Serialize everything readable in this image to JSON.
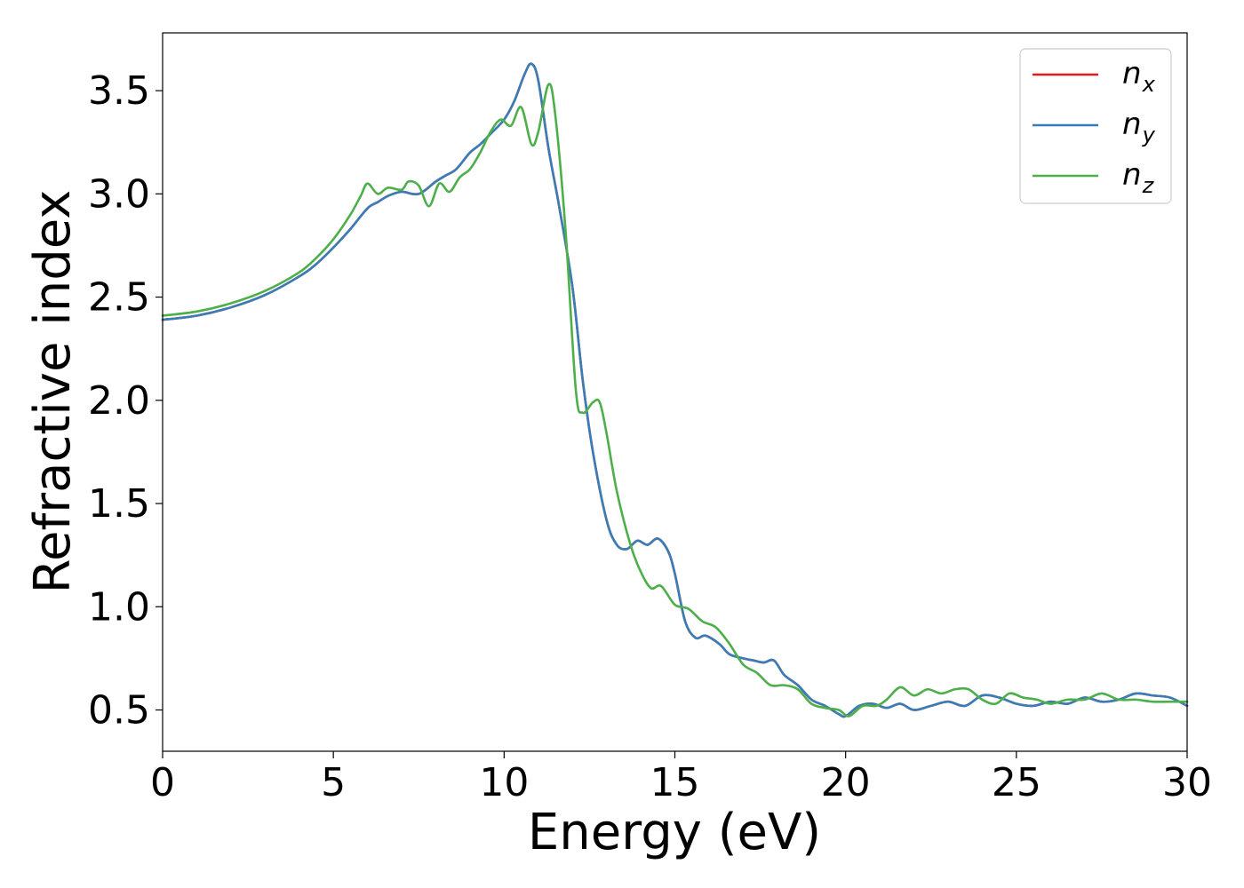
{
  "chart_data": {
    "type": "line",
    "xlabel": "Energy (eV)",
    "ylabel": "Refractive index",
    "xlim": [
      0,
      30
    ],
    "ylim": [
      0.3,
      3.78
    ],
    "xticks": [
      0,
      5,
      10,
      15,
      20,
      25,
      30
    ],
    "xtick_labels": [
      "0",
      "5",
      "10",
      "15",
      "20",
      "25",
      "30"
    ],
    "yticks": [
      0.5,
      1.0,
      1.5,
      2.0,
      2.5,
      3.0,
      3.5
    ],
    "ytick_labels": [
      "0.5",
      "1.0",
      "1.5",
      "2.0",
      "2.5",
      "3.0",
      "3.5"
    ],
    "grid": false,
    "legend_position": "top-right",
    "series": [
      {
        "name": "n_x",
        "legend_base": "n",
        "legend_sub": "x",
        "color": "#e41a1c",
        "x": [
          0,
          1,
          2,
          3,
          4,
          4.5,
          5,
          5.5,
          6,
          6.3,
          6.6,
          7,
          7.5,
          8,
          8.3,
          8.6,
          9,
          9.3,
          9.6,
          10,
          10.3,
          10.6,
          10.8,
          11,
          11.3,
          11.6,
          12,
          12.3,
          12.6,
          13,
          13.3,
          13.6,
          13.9,
          14.2,
          14.5,
          14.8,
          15,
          15.3,
          15.6,
          15.9,
          16.3,
          16.6,
          17,
          17.3,
          17.6,
          17.9,
          18.2,
          18.6,
          19,
          19.4,
          19.8,
          20,
          20.4,
          20.8,
          21.2,
          21.6,
          22,
          22.5,
          23,
          23.5,
          24,
          24.5,
          25,
          25.5,
          26,
          26.5,
          27,
          27.5,
          28,
          28.5,
          29,
          29.5,
          30
        ],
        "y": [
          2.39,
          2.41,
          2.45,
          2.51,
          2.6,
          2.66,
          2.74,
          2.83,
          2.93,
          2.96,
          2.99,
          3.01,
          3.0,
          3.06,
          3.09,
          3.12,
          3.2,
          3.24,
          3.29,
          3.36,
          3.45,
          3.58,
          3.63,
          3.55,
          3.22,
          2.95,
          2.55,
          2.1,
          1.75,
          1.42,
          1.3,
          1.28,
          1.32,
          1.3,
          1.33,
          1.27,
          1.16,
          0.93,
          0.85,
          0.86,
          0.82,
          0.77,
          0.75,
          0.74,
          0.73,
          0.74,
          0.67,
          0.62,
          0.55,
          0.52,
          0.48,
          0.47,
          0.52,
          0.53,
          0.51,
          0.53,
          0.5,
          0.52,
          0.54,
          0.52,
          0.57,
          0.56,
          0.53,
          0.52,
          0.54,
          0.53,
          0.56,
          0.54,
          0.55,
          0.58,
          0.57,
          0.56,
          0.52
        ]
      },
      {
        "name": "n_y",
        "legend_base": "n",
        "legend_sub": "y",
        "color": "#377eb8",
        "x": [
          0,
          1,
          2,
          3,
          4,
          4.5,
          5,
          5.5,
          6,
          6.3,
          6.6,
          7,
          7.5,
          8,
          8.3,
          8.6,
          9,
          9.3,
          9.6,
          10,
          10.3,
          10.6,
          10.8,
          11,
          11.3,
          11.6,
          12,
          12.3,
          12.6,
          13,
          13.3,
          13.6,
          13.9,
          14.2,
          14.5,
          14.8,
          15,
          15.3,
          15.6,
          15.9,
          16.3,
          16.6,
          17,
          17.3,
          17.6,
          17.9,
          18.2,
          18.6,
          19,
          19.4,
          19.8,
          20,
          20.4,
          20.8,
          21.2,
          21.6,
          22,
          22.5,
          23,
          23.5,
          24,
          24.5,
          25,
          25.5,
          26,
          26.5,
          27,
          27.5,
          28,
          28.5,
          29,
          29.5,
          30
        ],
        "y": [
          2.39,
          2.41,
          2.45,
          2.51,
          2.6,
          2.66,
          2.74,
          2.83,
          2.93,
          2.96,
          2.99,
          3.01,
          3.0,
          3.06,
          3.09,
          3.12,
          3.2,
          3.24,
          3.29,
          3.36,
          3.45,
          3.58,
          3.63,
          3.55,
          3.22,
          2.95,
          2.55,
          2.1,
          1.75,
          1.42,
          1.3,
          1.28,
          1.32,
          1.3,
          1.33,
          1.27,
          1.16,
          0.93,
          0.85,
          0.86,
          0.82,
          0.77,
          0.75,
          0.74,
          0.73,
          0.74,
          0.67,
          0.62,
          0.55,
          0.52,
          0.48,
          0.47,
          0.52,
          0.53,
          0.51,
          0.53,
          0.5,
          0.52,
          0.54,
          0.52,
          0.57,
          0.56,
          0.53,
          0.52,
          0.54,
          0.53,
          0.56,
          0.54,
          0.55,
          0.58,
          0.57,
          0.56,
          0.52
        ]
      },
      {
        "name": "n_z",
        "legend_base": "n",
        "legend_sub": "z",
        "color": "#4daf4a",
        "x": [
          0,
          1,
          2,
          3,
          4,
          4.5,
          5,
          5.5,
          5.8,
          6,
          6.3,
          6.6,
          7,
          7.2,
          7.5,
          7.8,
          8.1,
          8.4,
          8.7,
          9,
          9.3,
          9.6,
          9.9,
          10.2,
          10.5,
          10.8,
          11.0,
          11.3,
          11.5,
          11.8,
          12.1,
          12.3,
          12.6,
          12.8,
          13.0,
          13.3,
          13.7,
          14.0,
          14.3,
          14.6,
          15.0,
          15.4,
          15.8,
          16.2,
          16.6,
          17.0,
          17.4,
          17.8,
          18.2,
          18.6,
          19.0,
          19.4,
          19.8,
          20.1,
          20.5,
          20.9,
          21.2,
          21.6,
          22.0,
          22.4,
          22.8,
          23.2,
          23.6,
          24.0,
          24.4,
          24.8,
          25.2,
          25.6,
          26.0,
          26.5,
          27.0,
          27.5,
          28.0,
          28.5,
          29.0,
          29.5,
          30
        ],
        "y": [
          2.41,
          2.43,
          2.47,
          2.53,
          2.62,
          2.69,
          2.78,
          2.9,
          2.99,
          3.05,
          3.0,
          3.03,
          3.02,
          3.06,
          3.04,
          2.94,
          3.05,
          3.01,
          3.08,
          3.12,
          3.2,
          3.3,
          3.36,
          3.33,
          3.42,
          3.24,
          3.3,
          3.53,
          3.38,
          2.82,
          2.05,
          1.94,
          1.99,
          1.99,
          1.84,
          1.56,
          1.3,
          1.17,
          1.09,
          1.1,
          1.01,
          0.99,
          0.93,
          0.9,
          0.82,
          0.72,
          0.68,
          0.62,
          0.62,
          0.6,
          0.53,
          0.51,
          0.5,
          0.47,
          0.52,
          0.52,
          0.55,
          0.61,
          0.57,
          0.6,
          0.58,
          0.6,
          0.6,
          0.55,
          0.53,
          0.58,
          0.56,
          0.55,
          0.53,
          0.55,
          0.55,
          0.58,
          0.55,
          0.55,
          0.54,
          0.54,
          0.54
        ]
      }
    ]
  }
}
